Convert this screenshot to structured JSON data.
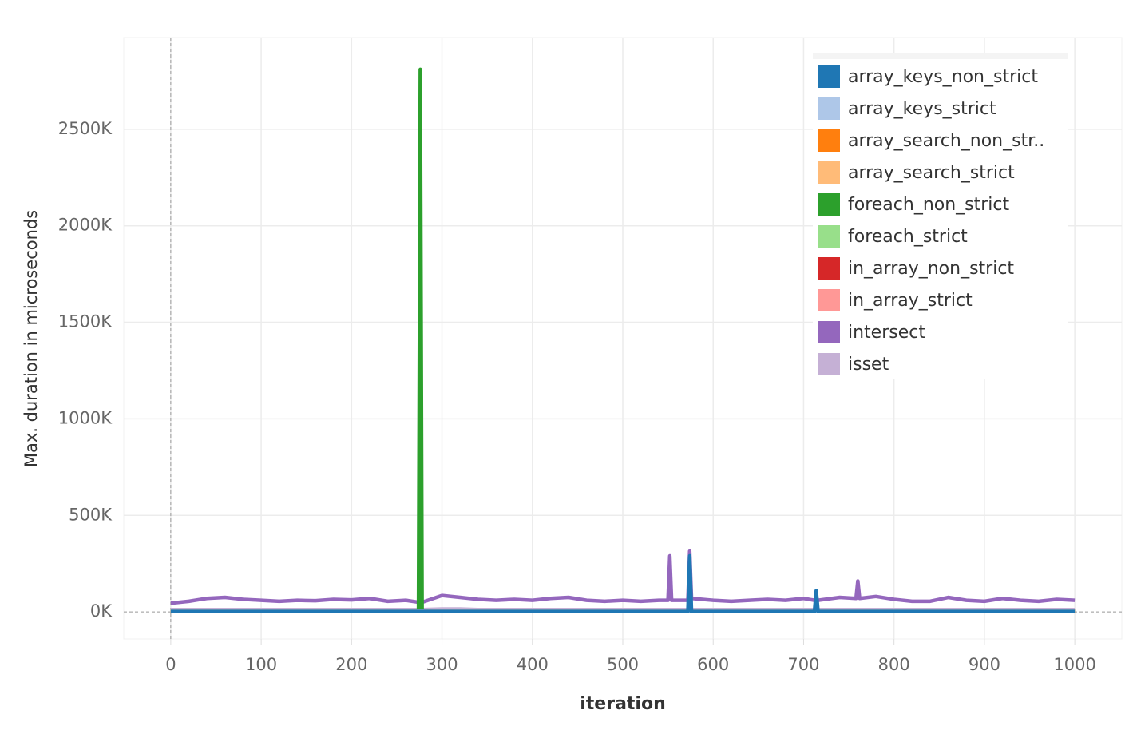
{
  "chart_data": {
    "type": "line",
    "x_label": "iteration",
    "y_label": "Max. duration in microseconds",
    "x": [
      0,
      20,
      40,
      60,
      80,
      100,
      120,
      140,
      160,
      180,
      200,
      220,
      240,
      260,
      274,
      276,
      278,
      300,
      320,
      340,
      360,
      380,
      400,
      420,
      440,
      460,
      480,
      500,
      520,
      540,
      550,
      552,
      554,
      572,
      574,
      576,
      600,
      620,
      640,
      660,
      680,
      700,
      712,
      714,
      716,
      740,
      758,
      760,
      762,
      780,
      800,
      820,
      840,
      860,
      880,
      900,
      920,
      940,
      960,
      980,
      1000
    ],
    "xlim": [
      -52,
      1052
    ],
    "xticks": [
      0,
      100,
      200,
      300,
      400,
      500,
      600,
      700,
      800,
      900,
      1000
    ],
    "ylim": [
      -140000,
      2975000
    ],
    "yticks": [
      {
        "value": 0,
        "label": "0K"
      },
      {
        "value": 500000,
        "label": "500K"
      },
      {
        "value": 1000000,
        "label": "1000K"
      },
      {
        "value": 1500000,
        "label": "1500K"
      },
      {
        "value": 2000000,
        "label": "2000K"
      },
      {
        "value": 2500000,
        "label": "2500K"
      }
    ],
    "grid": true,
    "legend": "top-right",
    "series": [
      {
        "name": "array_keys_non_strict",
        "color": "#1f77b4",
        "values": [
          2000,
          2000,
          2000,
          2000,
          2000,
          2000,
          2000,
          2000,
          2000,
          2000,
          2000,
          2000,
          2000,
          2000,
          2000,
          2000,
          2000,
          2000,
          2000,
          2000,
          2000,
          2000,
          2000,
          2000,
          2000,
          2000,
          2000,
          2000,
          2000,
          2000,
          2000,
          2000,
          2000,
          2000,
          290000,
          2000,
          2000,
          2000,
          2000,
          2000,
          2000,
          2000,
          2000,
          110000,
          2000,
          2000,
          2000,
          2000,
          2000,
          2000,
          2000,
          2000,
          2000,
          2000,
          2000,
          2000,
          2000,
          2000,
          2000,
          2000,
          2000
        ]
      },
      {
        "name": "array_keys_strict",
        "color": "#aec7e8",
        "values": [
          3000,
          3000,
          3000,
          3000,
          3000,
          3000,
          3000,
          3000,
          3000,
          3000,
          3000,
          3000,
          3000,
          3000,
          3000,
          3000,
          3000,
          3000,
          3000,
          3000,
          3000,
          3000,
          3000,
          3000,
          3000,
          3000,
          3000,
          3000,
          3000,
          3000,
          3000,
          3000,
          3000,
          3000,
          3000,
          3000,
          3000,
          3000,
          3000,
          3000,
          3000,
          3000,
          3000,
          3000,
          3000,
          3000,
          3000,
          3000,
          3000,
          3000,
          3000,
          3000,
          3000,
          3000,
          3000,
          3000,
          3000,
          3000,
          3000,
          3000,
          3000
        ]
      },
      {
        "name": "array_search_non_str..",
        "color": "#ff7f0e",
        "values": [
          4000,
          4000,
          4000,
          4000,
          4000,
          4000,
          4000,
          4000,
          4000,
          4000,
          4000,
          4000,
          4000,
          4000,
          4000,
          4000,
          4000,
          4000,
          4000,
          4000,
          4000,
          4000,
          4000,
          4000,
          4000,
          4000,
          4000,
          4000,
          4000,
          4000,
          4000,
          4000,
          4000,
          4000,
          4000,
          4000,
          4000,
          4000,
          4000,
          4000,
          4000,
          4000,
          4000,
          4000,
          4000,
          4000,
          4000,
          4000,
          4000,
          4000,
          4000,
          4000,
          4000,
          4000,
          4000,
          4000,
          4000,
          4000,
          4000,
          4000,
          4000
        ]
      },
      {
        "name": "array_search_strict",
        "color": "#ffbb78",
        "values": [
          4000,
          4000,
          4000,
          4000,
          4000,
          4000,
          4000,
          4000,
          4000,
          4000,
          4000,
          4000,
          4000,
          4000,
          4000,
          4000,
          4000,
          4000,
          4000,
          4000,
          4000,
          4000,
          4000,
          4000,
          4000,
          4000,
          4000,
          4000,
          4000,
          4000,
          4000,
          4000,
          4000,
          4000,
          4000,
          4000,
          4000,
          4000,
          4000,
          4000,
          4000,
          4000,
          4000,
          4000,
          4000,
          4000,
          4000,
          4000,
          4000,
          4000,
          4000,
          4000,
          4000,
          4000,
          4000,
          4000,
          4000,
          4000,
          4000,
          4000,
          4000
        ]
      },
      {
        "name": "foreach_non_strict",
        "color": "#2ca02c",
        "values": [
          3000,
          3000,
          3000,
          3000,
          3000,
          3000,
          3000,
          3000,
          3000,
          3000,
          3000,
          3000,
          3000,
          3000,
          3000,
          2810000,
          3000,
          3000,
          3000,
          3000,
          3000,
          3000,
          3000,
          3000,
          3000,
          3000,
          3000,
          3000,
          3000,
          3000,
          3000,
          3000,
          3000,
          3000,
          3000,
          3000,
          3000,
          3000,
          3000,
          3000,
          3000,
          3000,
          3000,
          3000,
          3000,
          3000,
          3000,
          3000,
          3000,
          3000,
          3000,
          3000,
          3000,
          3000,
          3000,
          3000,
          3000,
          3000,
          3000,
          3000,
          3000
        ]
      },
      {
        "name": "foreach_strict",
        "color": "#98df8a",
        "values": [
          3000,
          3000,
          3000,
          3000,
          3000,
          3000,
          3000,
          3000,
          3000,
          3000,
          3000,
          3000,
          3000,
          3000,
          3000,
          3000,
          3000,
          3000,
          3000,
          3000,
          3000,
          3000,
          3000,
          3000,
          3000,
          3000,
          3000,
          3000,
          3000,
          3000,
          3000,
          3000,
          3000,
          3000,
          3000,
          3000,
          3000,
          3000,
          3000,
          3000,
          3000,
          3000,
          3000,
          3000,
          3000,
          3000,
          3000,
          3000,
          3000,
          3000,
          3000,
          3000,
          3000,
          3000,
          3000,
          3000,
          3000,
          3000,
          3000,
          3000,
          3000
        ]
      },
      {
        "name": "in_array_non_strict",
        "color": "#d62728",
        "values": [
          2000,
          2000,
          2000,
          2000,
          2000,
          2000,
          2000,
          2000,
          2000,
          2000,
          2000,
          2000,
          2000,
          2000,
          2000,
          2000,
          2000,
          2000,
          2000,
          2000,
          2000,
          2000,
          2000,
          2000,
          2000,
          2000,
          2000,
          2000,
          2000,
          2000,
          2000,
          2000,
          2000,
          2000,
          2000,
          2000,
          2000,
          2000,
          2000,
          2000,
          2000,
          2000,
          2000,
          2000,
          2000,
          2000,
          2000,
          2000,
          2000,
          2000,
          2000,
          2000,
          2000,
          2000,
          2000,
          2000,
          2000,
          2000,
          2000,
          2000,
          2000
        ]
      },
      {
        "name": "in_array_strict",
        "color": "#ff9896",
        "values": [
          2000,
          2000,
          2000,
          2000,
          2000,
          2000,
          2000,
          2000,
          2000,
          2000,
          2000,
          2000,
          2000,
          2000,
          2000,
          2000,
          2000,
          2000,
          2000,
          2000,
          2000,
          2000,
          2000,
          2000,
          2000,
          2000,
          2000,
          2000,
          2000,
          2000,
          2000,
          2000,
          2000,
          2000,
          2000,
          2000,
          2000,
          2000,
          2000,
          2000,
          2000,
          2000,
          2000,
          2000,
          2000,
          2000,
          2000,
          2000,
          2000,
          2000,
          2000,
          2000,
          2000,
          2000,
          2000,
          2000,
          2000,
          2000,
          2000,
          2000,
          2000
        ]
      },
      {
        "name": "intersect",
        "color": "#9467bd",
        "values": [
          45000,
          55000,
          70000,
          75000,
          65000,
          60000,
          55000,
          60000,
          58000,
          65000,
          62000,
          70000,
          55000,
          60000,
          50000,
          50000,
          50000,
          85000,
          75000,
          65000,
          60000,
          65000,
          60000,
          70000,
          75000,
          60000,
          55000,
          60000,
          55000,
          60000,
          60000,
          290000,
          60000,
          60000,
          315000,
          70000,
          60000,
          55000,
          60000,
          65000,
          60000,
          70000,
          60000,
          65000,
          60000,
          75000,
          70000,
          160000,
          70000,
          80000,
          65000,
          55000,
          55000,
          75000,
          60000,
          55000,
          70000,
          60000,
          55000,
          65000,
          60000
        ]
      },
      {
        "name": "isset",
        "color": "#c5b0d5",
        "values": [
          12000,
          12000,
          12000,
          12000,
          12000,
          12000,
          12000,
          12000,
          12000,
          12000,
          12000,
          12000,
          12000,
          12000,
          12000,
          12000,
          12000,
          15000,
          15000,
          12000,
          12000,
          12000,
          12000,
          12000,
          12000,
          12000,
          12000,
          12000,
          12000,
          12000,
          12000,
          12000,
          12000,
          12000,
          12000,
          12000,
          12000,
          12000,
          12000,
          12000,
          12000,
          12000,
          12000,
          12000,
          12000,
          12000,
          12000,
          12000,
          12000,
          12000,
          12000,
          12000,
          12000,
          12000,
          12000,
          12000,
          12000,
          12000,
          12000,
          12000,
          12000
        ]
      }
    ]
  }
}
